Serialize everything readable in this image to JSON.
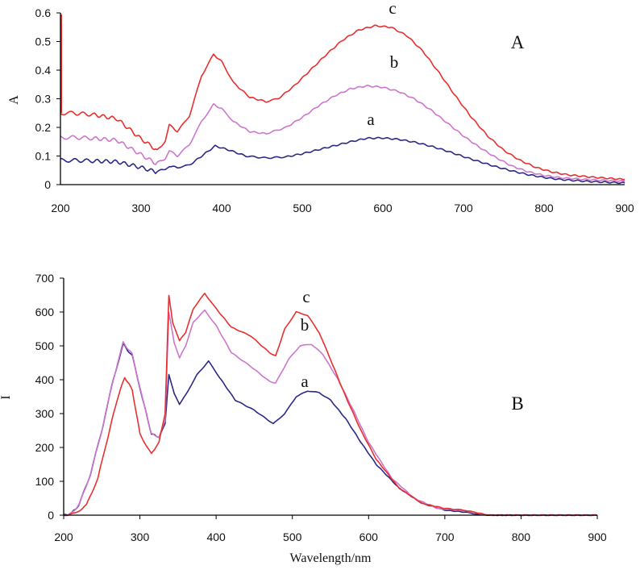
{
  "chart_data": [
    {
      "type": "line",
      "panel_label": "A",
      "ylabel": "A",
      "xlabel": "",
      "xlim": [
        200,
        900
      ],
      "ylim": [
        0,
        0.6
      ],
      "x_ticks": [
        "200",
        "300",
        "400",
        "500",
        "600",
        "700",
        "800",
        "900"
      ],
      "y_ticks": [
        "0",
        "0.1",
        "0.2",
        "0.3",
        "0.4",
        "0.5",
        "0.6"
      ],
      "grid": false,
      "series": [
        {
          "name": "a",
          "color": "#2b2a86",
          "x": [
            200,
            215,
            240,
            270,
            300,
            318,
            330,
            335,
            345,
            360,
            380,
            392,
            410,
            430,
            455,
            480,
            500,
            520,
            540,
            560,
            580,
            600,
            620,
            640,
            660,
            680,
            700,
            720,
            740,
            760,
            780,
            800,
            820,
            850,
            880,
            900
          ],
          "y": [
            0.085,
            0.085,
            0.083,
            0.08,
            0.06,
            0.045,
            0.055,
            0.065,
            0.06,
            0.068,
            0.11,
            0.135,
            0.12,
            0.1,
            0.093,
            0.097,
            0.108,
            0.122,
            0.136,
            0.15,
            0.162,
            0.163,
            0.158,
            0.148,
            0.134,
            0.117,
            0.098,
            0.08,
            0.063,
            0.048,
            0.035,
            0.025,
            0.018,
            0.012,
            0.008,
            0.006
          ]
        },
        {
          "name": "b",
          "color": "#cc77cc",
          "x": [
            200,
            215,
            240,
            270,
            300,
            318,
            330,
            335,
            345,
            360,
            375,
            390,
            400,
            415,
            435,
            455,
            480,
            500,
            520,
            540,
            560,
            580,
            600,
            620,
            640,
            660,
            680,
            700,
            720,
            740,
            760,
            780,
            800,
            820,
            850,
            880,
            900
          ],
          "y": [
            0.165,
            0.165,
            0.162,
            0.155,
            0.105,
            0.075,
            0.09,
            0.12,
            0.1,
            0.14,
            0.22,
            0.28,
            0.265,
            0.22,
            0.185,
            0.178,
            0.2,
            0.235,
            0.275,
            0.31,
            0.335,
            0.345,
            0.34,
            0.325,
            0.298,
            0.26,
            0.215,
            0.17,
            0.13,
            0.095,
            0.065,
            0.045,
            0.032,
            0.024,
            0.018,
            0.014,
            0.012
          ]
        },
        {
          "name": "c",
          "color": "#e83030",
          "x": [
            200,
            215,
            240,
            270,
            300,
            320,
            330,
            335,
            345,
            360,
            375,
            390,
            400,
            415,
            435,
            455,
            470,
            490,
            510,
            530,
            550,
            570,
            590,
            610,
            630,
            650,
            670,
            690,
            710,
            730,
            750,
            770,
            790,
            810,
            830,
            860,
            880,
            900
          ],
          "y": [
            0.25,
            0.25,
            0.245,
            0.23,
            0.16,
            0.12,
            0.15,
            0.21,
            0.185,
            0.24,
            0.38,
            0.455,
            0.43,
            0.355,
            0.305,
            0.29,
            0.3,
            0.345,
            0.4,
            0.455,
            0.505,
            0.54,
            0.555,
            0.55,
            0.52,
            0.465,
            0.39,
            0.31,
            0.235,
            0.17,
            0.12,
            0.085,
            0.06,
            0.044,
            0.034,
            0.026,
            0.022,
            0.018
          ]
        }
      ],
      "annotations": [
        "c",
        "b",
        "a"
      ]
    },
    {
      "type": "line",
      "panel_label": "B",
      "ylabel": "I",
      "xlabel": "Wavelength/nm",
      "xlim": [
        200,
        900
      ],
      "ylim": [
        0,
        700
      ],
      "x_ticks": [
        "200",
        "300",
        "400",
        "500",
        "600",
        "700",
        "800",
        "900"
      ],
      "y_ticks": [
        "0",
        "100",
        "200",
        "300",
        "400",
        "500",
        "600",
        "700"
      ],
      "grid": false,
      "series": [
        {
          "name": "a",
          "color": "#2b2a86",
          "x": [
            200,
            210,
            220,
            235,
            250,
            265,
            278,
            290,
            305,
            315,
            325,
            333,
            338,
            345,
            352,
            360,
            375,
            390,
            405,
            425,
            450,
            475,
            490,
            505,
            520,
            535,
            550,
            570,
            590,
            610,
            640,
            670,
            700,
            730,
            745,
            760,
            800,
            900
          ],
          "y": [
            0,
            5,
            30,
            120,
            250,
            400,
            505,
            470,
            330,
            240,
            230,
            270,
            415,
            360,
            328,
            355,
            415,
            455,
            405,
            340,
            310,
            270,
            300,
            350,
            367,
            362,
            340,
            285,
            215,
            150,
            80,
            35,
            15,
            8,
            2,
            0,
            0,
            0
          ]
        },
        {
          "name": "b",
          "color": "#cc77cc",
          "x": [
            200,
            210,
            220,
            235,
            250,
            265,
            278,
            290,
            305,
            315,
            325,
            333,
            338,
            345,
            352,
            360,
            370,
            385,
            400,
            420,
            445,
            470,
            478,
            495,
            510,
            525,
            540,
            560,
            580,
            600,
            630,
            660,
            690,
            720,
            740,
            755,
            800,
            900
          ],
          "y": [
            0,
            5,
            30,
            120,
            250,
            400,
            510,
            475,
            330,
            240,
            230,
            280,
            600,
            510,
            465,
            500,
            570,
            605,
            560,
            480,
            440,
            395,
            390,
            460,
            500,
            505,
            475,
            400,
            310,
            215,
            110,
            50,
            20,
            15,
            8,
            0,
            0,
            0
          ]
        },
        {
          "name": "c",
          "color": "#e83030",
          "x": [
            200,
            215,
            230,
            245,
            260,
            270,
            280,
            290,
            300,
            315,
            325,
            333,
            338,
            343,
            352,
            360,
            370,
            385,
            400,
            420,
            445,
            470,
            478,
            490,
            505,
            520,
            535,
            550,
            570,
            590,
            610,
            640,
            670,
            700,
            725,
            740,
            758,
            800,
            900
          ],
          "y": [
            0,
            5,
            30,
            110,
            250,
            340,
            408,
            370,
            240,
            180,
            215,
            300,
            650,
            570,
            515,
            540,
            610,
            655,
            610,
            555,
            530,
            480,
            470,
            550,
            600,
            590,
            540,
            460,
            350,
            250,
            165,
            80,
            35,
            20,
            15,
            8,
            0,
            0,
            0
          ]
        }
      ],
      "annotations": [
        "c",
        "b",
        "a"
      ]
    }
  ]
}
